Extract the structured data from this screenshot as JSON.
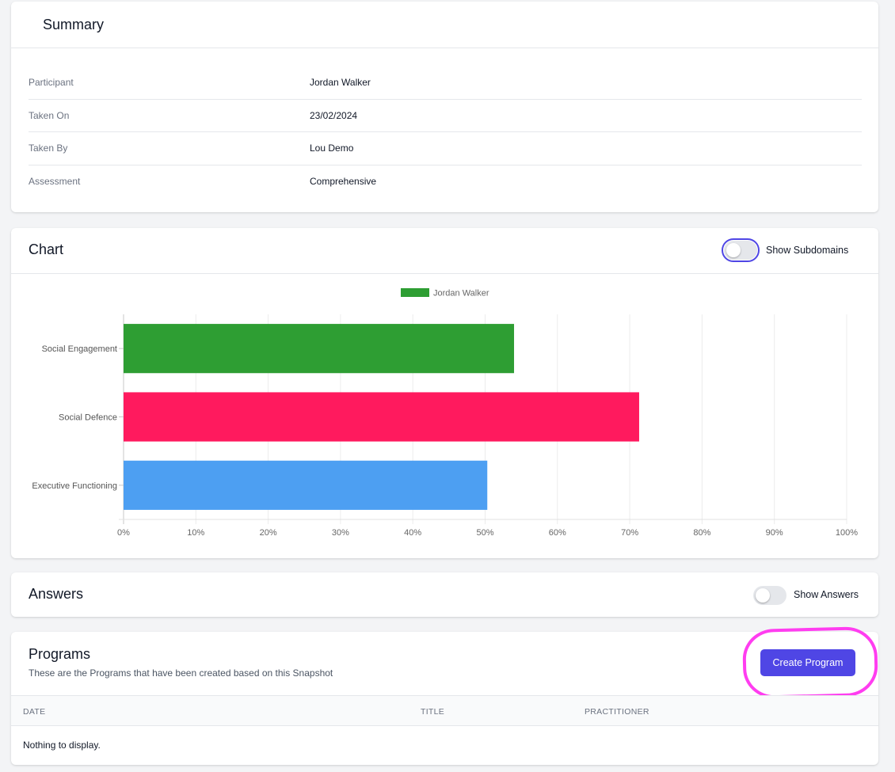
{
  "summary": {
    "title": "Summary",
    "rows": [
      {
        "label": "Participant",
        "value": "Jordan Walker"
      },
      {
        "label": "Taken On",
        "value": "23/02/2024"
      },
      {
        "label": "Taken By",
        "value": "Lou Demo"
      },
      {
        "label": "Assessment",
        "value": "Comprehensive"
      }
    ]
  },
  "chart_section": {
    "title": "Chart",
    "toggle_label": "Show Subdomains",
    "toggle_on": false
  },
  "chart_data": {
    "type": "bar",
    "orientation": "horizontal",
    "legend": [
      "Jordan Walker"
    ],
    "legend_color": "#2e9e33",
    "categories": [
      "Social Engagement",
      "Social Defence",
      "Executive Functioning"
    ],
    "values": [
      54,
      71.3,
      50.3
    ],
    "colors": [
      "#2e9e33",
      "#ff1a5e",
      "#4d9ff2"
    ],
    "xlim": [
      0,
      100
    ],
    "x_ticks": [
      "0%",
      "10%",
      "20%",
      "30%",
      "40%",
      "50%",
      "60%",
      "70%",
      "80%",
      "90%",
      "100%"
    ],
    "grid": true
  },
  "answers": {
    "title": "Answers",
    "toggle_label": "Show Answers",
    "toggle_on": false
  },
  "programs": {
    "title": "Programs",
    "subtitle": "These are the Programs that have been created based on this Snapshot",
    "create_button": "Create Program",
    "columns": [
      "DATE",
      "TITLE",
      "PRACTITIONER"
    ],
    "empty_text": "Nothing to display."
  },
  "colors": {
    "primary": "#4f46e5",
    "highlight": "#ff3df0"
  }
}
